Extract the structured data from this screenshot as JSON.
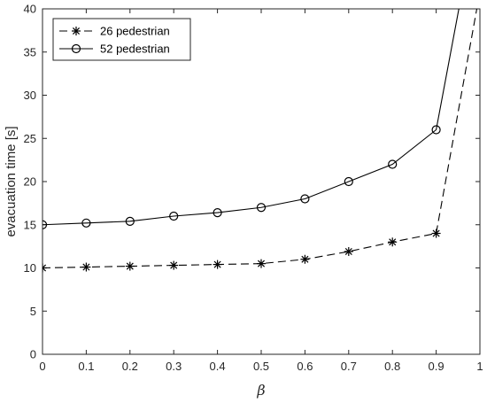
{
  "chart_data": {
    "type": "line",
    "xlabel": "β",
    "ylabel": "evacuation time [s]",
    "xlim": [
      0,
      1
    ],
    "ylim": [
      0,
      40
    ],
    "x_ticks": [
      "0",
      "0.1",
      "0.2",
      "0.3",
      "0.4",
      "0.5",
      "0.6",
      "0.7",
      "0.8",
      "0.9",
      "1"
    ],
    "y_ticks": [
      "0",
      "5",
      "10",
      "15",
      "20",
      "25",
      "30",
      "35",
      "40"
    ],
    "grid": false,
    "legend_position": "top-left",
    "series": [
      {
        "name": "26 pedestrian",
        "line_style": "dashed",
        "marker": "asterisk",
        "color": "#000000",
        "x": [
          0,
          0.1,
          0.2,
          0.3,
          0.4,
          0.5,
          0.6,
          0.7,
          0.8,
          0.9,
          1.0
        ],
        "values": [
          10,
          10.1,
          10.2,
          10.3,
          10.4,
          10.5,
          11,
          11.9,
          13,
          14,
          42
        ]
      },
      {
        "name": "52 pedestrian",
        "line_style": "solid",
        "marker": "circle",
        "color": "#000000",
        "x": [
          0,
          0.1,
          0.2,
          0.3,
          0.4,
          0.5,
          0.6,
          0.7,
          0.8,
          0.9,
          1.0
        ],
        "values": [
          15,
          15.2,
          15.4,
          16,
          16.4,
          17,
          18,
          20,
          22,
          26,
          53
        ]
      }
    ]
  }
}
